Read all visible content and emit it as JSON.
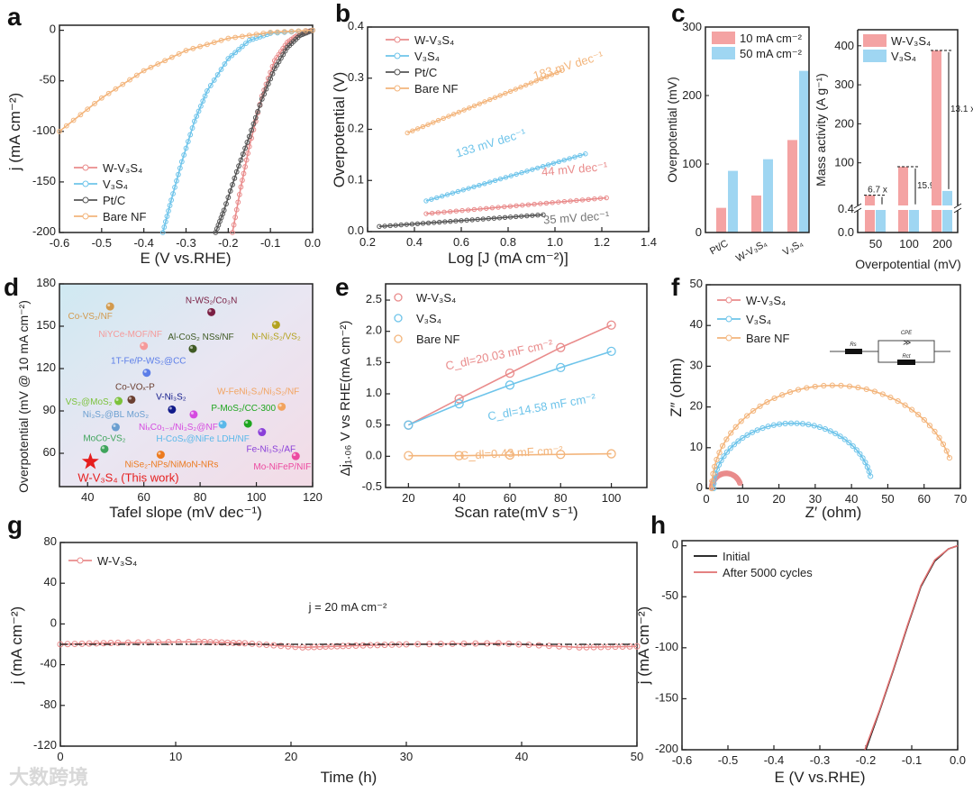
{
  "colors": {
    "w_v3s4": "#e98b8b",
    "v3s4": "#6ec4ea",
    "ptc": "#555555",
    "bare_nf": "#f3b57c",
    "initial": "#111111",
    "after": "#e06f6f"
  },
  "watermark": "大数跨境",
  "chart_data": [
    {
      "panel": "a",
      "type": "line",
      "xlabel": "E (V vs.RHE)",
      "ylabel": "j (mA cm⁻²)",
      "xlim": [
        -0.6,
        0
      ],
      "ylim": [
        -200,
        5
      ],
      "xticks": [
        "-0.6",
        "-0.5",
        "-0.4",
        "-0.3",
        "-0.2",
        "-0.1",
        "0.0"
      ],
      "yticks": [
        "-200",
        "-150",
        "-100",
        "-50",
        "0"
      ],
      "legend": "bottom-left",
      "series": [
        {
          "name": "W-V₃S₄",
          "color": "#e98b8b",
          "points": [
            [
              0,
              0
            ],
            [
              -0.03,
              -3
            ],
            [
              -0.06,
              -12
            ],
            [
              -0.09,
              -30
            ],
            [
              -0.12,
              -65
            ],
            [
              -0.15,
              -115
            ],
            [
              -0.17,
              -155
            ],
            [
              -0.19,
              -200
            ]
          ]
        },
        {
          "name": "V₃S₄",
          "color": "#6ec4ea",
          "points": [
            [
              0,
              0
            ],
            [
              -0.1,
              -3
            ],
            [
              -0.15,
              -10
            ],
            [
              -0.2,
              -28
            ],
            [
              -0.25,
              -60
            ],
            [
              -0.28,
              -90
            ],
            [
              -0.31,
              -130
            ],
            [
              -0.335,
              -168
            ],
            [
              -0.355,
              -200
            ]
          ]
        },
        {
          "name": "Pt/C",
          "color": "#555555",
          "points": [
            [
              0,
              0
            ],
            [
              -0.03,
              -5
            ],
            [
              -0.06,
              -17
            ],
            [
              -0.09,
              -38
            ],
            [
              -0.12,
              -68
            ],
            [
              -0.15,
              -105
            ],
            [
              -0.18,
              -140
            ],
            [
              -0.21,
              -178
            ],
            [
              -0.23,
              -200
            ]
          ]
        },
        {
          "name": "Bare NF",
          "color": "#f3b57c",
          "points": [
            [
              0,
              0
            ],
            [
              -0.1,
              -2
            ],
            [
              -0.2,
              -8
            ],
            [
              -0.3,
              -20
            ],
            [
              -0.4,
              -40
            ],
            [
              -0.5,
              -67
            ],
            [
              -0.6,
              -100
            ]
          ]
        }
      ]
    },
    {
      "panel": "b",
      "type": "line",
      "xlabel": "Log [J (mA cm⁻²)]",
      "ylabel": "Overpotential (V)",
      "xlim": [
        0.2,
        1.4
      ],
      "ylim": [
        0,
        0.4
      ],
      "xticks": [
        "0.2",
        "0.4",
        "0.6",
        "0.8",
        "1.0",
        "1.2",
        "1.4"
      ],
      "yticks": [
        "0.0",
        "0.1",
        "0.2",
        "0.3",
        "0.4"
      ],
      "legend": "top-left",
      "series": [
        {
          "name": "W-V₃S₄",
          "color": "#e98b8b",
          "points": [
            [
              0.45,
              0.035
            ],
            [
              1.22,
              0.066
            ]
          ],
          "annotation": "44 mV dec⁻¹"
        },
        {
          "name": "V₃S₄",
          "color": "#6ec4ea",
          "points": [
            [
              0.45,
              0.06
            ],
            [
              1.13,
              0.152
            ]
          ],
          "annotation": "133 mV dec⁻¹"
        },
        {
          "name": "Pt/C",
          "color": "#555555",
          "points": [
            [
              0.25,
              0.01
            ],
            [
              0.95,
              0.033
            ]
          ],
          "annotation": "35 mV dec⁻¹"
        },
        {
          "name": "Bare NF",
          "color": "#f3b57c",
          "points": [
            [
              0.37,
              0.193
            ],
            [
              1.03,
              0.315
            ]
          ],
          "annotation": "183 mV dec⁻¹"
        }
      ]
    },
    {
      "panel": "c-left",
      "type": "bar",
      "ylabel": "Overpotential (mV)",
      "ylim": [
        0,
        300
      ],
      "yticks": [
        "0",
        "100",
        "200",
        "300"
      ],
      "categories": [
        "Pt/C",
        "W-V₃S₄",
        "V₃S₄"
      ],
      "legend": "top-left",
      "series": [
        {
          "name": "10 mA cm⁻²",
          "color": "#f4a3a3",
          "values": [
            36,
            54,
            135
          ]
        },
        {
          "name": "50 mA cm⁻²",
          "color": "#9fd6f2",
          "values": [
            90,
            107,
            236
          ]
        }
      ]
    },
    {
      "panel": "c-right",
      "type": "bar",
      "xlabel": "Overpotential (mV)",
      "ylabel": "Mass activity (A g⁻¹)",
      "yticks_lower": [
        "0.0",
        "0.4"
      ],
      "yticks_upper": [
        "100",
        "200",
        "300",
        "400"
      ],
      "axis_break": true,
      "categories": [
        "50",
        "100",
        "200"
      ],
      "legend": "top-left",
      "series": [
        {
          "name": "W-V₃S₄",
          "color": "#f4a3a3",
          "values": [
            17,
            90,
            388
          ]
        },
        {
          "name": "V₃S₄",
          "color": "#9fd6f2",
          "values": [
            0.45,
            0.45,
            28
          ]
        }
      ],
      "annotations": [
        "6.7 x",
        "15.9 x",
        "13.1 x"
      ]
    },
    {
      "panel": "d",
      "type": "scatter",
      "xlabel": "Tafel slope (mV dec⁻¹)",
      "ylabel": "Overpotential (mV @ 10 mA cm⁻²)",
      "xlim": [
        30,
        120
      ],
      "ylim": [
        36.4,
        180
      ],
      "xticks": [
        "40",
        "60",
        "80",
        "100",
        "120"
      ],
      "yticks": [
        "60",
        "90",
        "120",
        "150",
        "180"
      ],
      "points": [
        {
          "label": "Co-VS₂/NF",
          "x": 48,
          "y": 164,
          "color": "#d29a4e"
        },
        {
          "label": "N-WS₂/Co₃N",
          "x": 84,
          "y": 160,
          "color": "#7a1f43"
        },
        {
          "label": "N-Ni₃S₂/VS₂",
          "x": 107,
          "y": 151,
          "color": "#b3a21e"
        },
        {
          "label": "NiYCe-MOF/NF",
          "x": 60,
          "y": 136,
          "color": "#f59a9a"
        },
        {
          "label": "Al-CoS₂ NSs/NF",
          "x": 77.4,
          "y": 134,
          "color": "#3f5a24"
        },
        {
          "label": "1T-Fe/P-WS₂@CC",
          "x": 61,
          "y": 117,
          "color": "#5b7de8"
        },
        {
          "label": "Co-VOₓ-P",
          "x": 55.6,
          "y": 98,
          "color": "#6b4032"
        },
        {
          "label": "VS₂@MoS₂",
          "x": 51,
          "y": 97,
          "color": "#7cc23c"
        },
        {
          "label": "V-Ni₃S₂",
          "x": 70,
          "y": 91,
          "color": "#111a8a"
        },
        {
          "label": "W-FeNi₂S₄/Ni₃S₂/NF",
          "x": 109,
          "y": 93,
          "color": "#f2a35f"
        },
        {
          "label": "Ni₃S₂@BL MoS₂",
          "x": 50,
          "y": 78.5,
          "color": "#6a9ed0"
        },
        {
          "label": "NiₓCo₁₋ₓ/Ni₃S₂@NF",
          "x": 77.7,
          "y": 87.5,
          "color": "#d54be0"
        },
        {
          "label": "P-MoS₂/CC-300",
          "x": 97,
          "y": 81,
          "color": "#1ea51e"
        },
        {
          "label": "H-CoSₓ@NiFe LDH/NF",
          "x": 88,
          "y": 80.4,
          "color": "#5ab8ea"
        },
        {
          "label": "Fe-Ni₃S₂/AF",
          "x": 102,
          "y": 75,
          "color": "#8a3fd9"
        },
        {
          "label": "MoCo-VS₂",
          "x": 46,
          "y": 63,
          "color": "#3fa45c"
        },
        {
          "label": "NiSe₂-NPs/NiMoN-NRs",
          "x": 66,
          "y": 59,
          "color": "#ec7a1e"
        },
        {
          "label": "Mo-NiFeP/NIF",
          "x": 114,
          "y": 58,
          "color": "#ec4aa0"
        },
        {
          "label": "W-V₃S₄ (This work)",
          "x": 41,
          "y": 54,
          "color": "#e61e1e",
          "marker": "star"
        }
      ]
    },
    {
      "panel": "e",
      "type": "scatter",
      "xlabel": "Scan rate(mV s⁻¹)",
      "ylabel": "Δj₁.₀₆ V vs RHE(mA cm⁻²)",
      "xlim": [
        11,
        114
      ],
      "ylim": [
        -0.5,
        2.76
      ],
      "xticks": [
        "20",
        "40",
        "60",
        "80",
        "100"
      ],
      "yticks": [
        "-0.5",
        "0.0",
        "0.5",
        "1.0",
        "1.5",
        "2.0",
        "2.5"
      ],
      "x": [
        20,
        40,
        60,
        80,
        100
      ],
      "legend": "top-left",
      "series": [
        {
          "name": "W-V₃S₄",
          "color": "#e98b8b",
          "values": [
            0.5,
            0.92,
            1.33,
            1.74,
            2.1
          ],
          "annotation": "C_dl=20.03 mF cm⁻²"
        },
        {
          "name": "V₃S₄",
          "color": "#6ec4ea",
          "values": [
            0.5,
            0.84,
            1.14,
            1.42,
            1.68
          ],
          "annotation": "C_dl=14.58 mF cm⁻²"
        },
        {
          "name": "Bare NF",
          "color": "#f3b57c",
          "values": [
            0.01,
            0.01,
            0.02,
            0.03,
            0.04
          ],
          "annotation": "C_dl=0.43 mF cm⁻²"
        }
      ]
    },
    {
      "panel": "f",
      "type": "line",
      "xlabel": "Z′ (ohm)",
      "ylabel": "Z″ (ohm)",
      "xlim": [
        0,
        70
      ],
      "ylim": [
        0,
        50
      ],
      "xticks": [
        "0",
        "10",
        "20",
        "30",
        "40",
        "50",
        "60",
        "70"
      ],
      "yticks": [
        "0",
        "10",
        "20",
        "30",
        "40",
        "50"
      ],
      "legend": "top-left",
      "circuit_labels": [
        "Rs",
        "CPE",
        "Rct"
      ],
      "series": [
        {
          "name": "W-V₃S₄",
          "color": "#e98b8b",
          "arc": {
            "x_min": 1.5,
            "x_max": 9.5,
            "peak": 3.7,
            "end_height": 1.3
          }
        },
        {
          "name": "V₃S₄",
          "color": "#6ec4ea",
          "arc": {
            "x_min": 2,
            "x_max": 45.6,
            "peak": 16,
            "end_height": 3
          }
        },
        {
          "name": "Bare NF",
          "color": "#f3b57c",
          "arc": {
            "x_min": 1.5,
            "x_max": 68.5,
            "peak": 25.3,
            "end_height": 7.5
          }
        }
      ]
    },
    {
      "panel": "g",
      "type": "line",
      "xlabel": "Time (h)",
      "ylabel": "j (mA cm⁻²)",
      "xlim": [
        0,
        50
      ],
      "ylim": [
        -120,
        80
      ],
      "xticks": [
        "0",
        "10",
        "20",
        "30",
        "40",
        "50"
      ],
      "yticks": [
        "-120",
        "-80",
        "-40",
        "0",
        "40",
        "80"
      ],
      "legend": "top-left",
      "reference_line": {
        "value": -20,
        "label": "j = 20 mA cm⁻²"
      },
      "series": [
        {
          "name": "W-V₃S₄",
          "color": "#e98b8b",
          "points": [
            [
              0,
              -20
            ],
            [
              5,
              -18.5
            ],
            [
              12,
              -17.5
            ],
            [
              16,
              -19
            ],
            [
              21,
              -23
            ],
            [
              25,
              -21.5
            ],
            [
              30,
              -20
            ],
            [
              38,
              -19
            ],
            [
              45,
              -23
            ],
            [
              50,
              -22
            ]
          ]
        }
      ]
    },
    {
      "panel": "h",
      "type": "line",
      "xlabel": "E (V vs.RHE)",
      "ylabel": "j (mA cm⁻²)",
      "xlim": [
        -0.6,
        0
      ],
      "ylim": [
        -200,
        5
      ],
      "xticks": [
        "-0.6",
        "-0.5",
        "-0.4",
        "-0.3",
        "-0.2",
        "-0.1",
        "0.0"
      ],
      "yticks": [
        "-200",
        "-150",
        "-100",
        "-50",
        "0"
      ],
      "legend": "top-left",
      "series": [
        {
          "name": "Initial",
          "color": "#111111",
          "points": [
            [
              0,
              0
            ],
            [
              -0.02,
              -3
            ],
            [
              -0.05,
              -15
            ],
            [
              -0.08,
              -40
            ],
            [
              -0.11,
              -80
            ],
            [
              -0.14,
              -122
            ],
            [
              -0.17,
              -162
            ],
            [
              -0.2,
              -200
            ]
          ]
        },
        {
          "name": "After 5000 cycles",
          "color": "#e06f6f",
          "points": [
            [
              0,
              0
            ],
            [
              -0.02,
              -3
            ],
            [
              -0.05,
              -14
            ],
            [
              -0.08,
              -39
            ],
            [
              -0.11,
              -79
            ],
            [
              -0.14,
              -121
            ],
            [
              -0.17,
              -161
            ],
            [
              -0.202,
              -200
            ]
          ]
        }
      ]
    }
  ],
  "panel_letters": [
    "a",
    "b",
    "c",
    "d",
    "e",
    "f",
    "g",
    "h"
  ]
}
